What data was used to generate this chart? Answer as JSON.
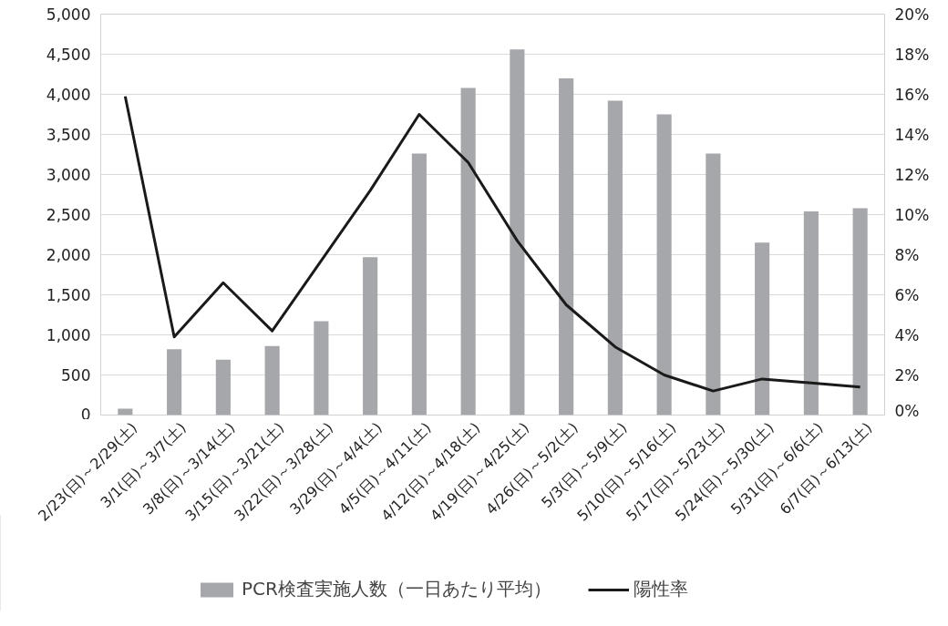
{
  "chart_data": {
    "type": "bar",
    "categories": [
      "2/23(日)～2/29(土)",
      "3/1(日)～3/7(土)",
      "3/8(日)～3/14(土)",
      "3/15(日)～3/21(土)",
      "3/22(日)～3/28(土)",
      "3/29(日)～4/4(土)",
      "4/5(日)～4/11(土)",
      "4/12(日)～4/18(土)",
      "4/19(日)～4/25(土)",
      "4/26(日)～5/2(土)",
      "5/3(日)～5/9(土)",
      "5/10(日)～5/16(土)",
      "5/17(日)～5/23(土)",
      "5/24(日)～5/30(土)",
      "5/31(日)～6/6(土)",
      "6/7(日)～6/13(土)"
    ],
    "series": [
      {
        "name": "PCR検査実施人数（一日あたり平均）",
        "color": "#a6a7ab",
        "values": [
          80,
          820,
          690,
          860,
          1170,
          1970,
          3260,
          4080,
          4560,
          4200,
          3920,
          3750,
          3260,
          2150,
          2540,
          2580
        ]
      },
      {
        "name": "陽性率",
        "type": "line",
        "axis": "y2",
        "color": "#1a1a1a",
        "values": [
          15.9,
          3.9,
          6.6,
          4.2,
          7.7,
          11.2,
          15.0,
          12.6,
          8.7,
          5.5,
          3.4,
          2.0,
          1.2,
          1.8,
          1.6,
          1.4
        ]
      }
    ],
    "ylim": [
      0,
      5000
    ],
    "yticks": [
      {
        "value": 0,
        "label": "0"
      },
      {
        "value": 500,
        "label": "500"
      },
      {
        "value": 1000,
        "label": "1,000"
      },
      {
        "value": 1500,
        "label": "1,500"
      },
      {
        "value": 2000,
        "label": "2,000"
      },
      {
        "value": 2500,
        "label": "2,500"
      },
      {
        "value": 3000,
        "label": "3,000"
      },
      {
        "value": 3500,
        "label": "3,500"
      },
      {
        "value": 4000,
        "label": "4,000"
      },
      {
        "value": 4500,
        "label": "4,500"
      },
      {
        "value": 5000,
        "label": "5,000"
      }
    ],
    "y2lim": [
      0,
      20
    ],
    "y2ticks": [
      {
        "value": 0,
        "label": "0%"
      },
      {
        "value": 2,
        "label": "2%"
      },
      {
        "value": 4,
        "label": "4%"
      },
      {
        "value": 6,
        "label": "6%"
      },
      {
        "value": 8,
        "label": "8%"
      },
      {
        "value": 10,
        "label": "10%"
      },
      {
        "value": 12,
        "label": "12%"
      },
      {
        "value": 14,
        "label": "14%"
      },
      {
        "value": 16,
        "label": "16%"
      },
      {
        "value": 18,
        "label": "18%"
      },
      {
        "value": 20,
        "label": "20%"
      }
    ],
    "grid": "y",
    "legend": "bottom",
    "marker": "none",
    "line_style": "solid"
  }
}
